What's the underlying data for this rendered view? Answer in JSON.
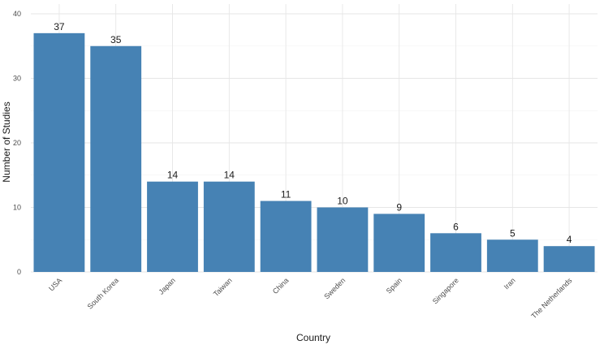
{
  "chart_data": {
    "type": "bar",
    "title": "",
    "xlabel": "Country",
    "ylabel": "Number of Studies",
    "categories": [
      "USA",
      "South Korea",
      "Japan",
      "Taiwan",
      "China",
      "Sweden",
      "Spain",
      "Singapore",
      "Iran",
      "The Netherlands"
    ],
    "values": [
      37,
      35,
      14,
      14,
      11,
      10,
      9,
      6,
      5,
      4
    ],
    "ylim": [
      0,
      40
    ],
    "yticks": [
      0,
      10,
      20,
      30,
      40
    ],
    "grid": true,
    "bar_color": "#4682B4",
    "legend": "none"
  }
}
